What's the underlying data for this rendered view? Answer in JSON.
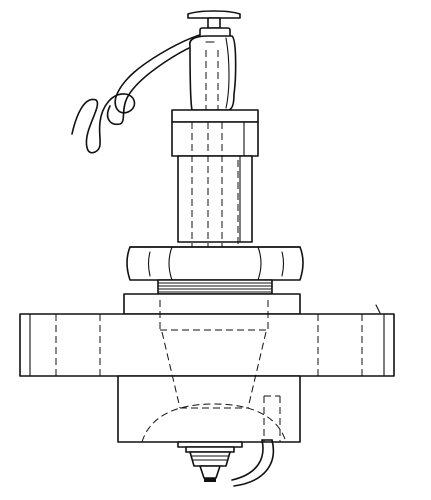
{
  "figure": {
    "background_color": "#ffffff",
    "line_color": "#111111",
    "parts": [
      "valve-handle",
      "wire-coil",
      "valve-stem",
      "upper-collar",
      "spindle-barrel",
      "hex-nut",
      "thread",
      "flange",
      "lower-housing",
      "nozzle-tip",
      "curved-drip-pipe"
    ]
  }
}
